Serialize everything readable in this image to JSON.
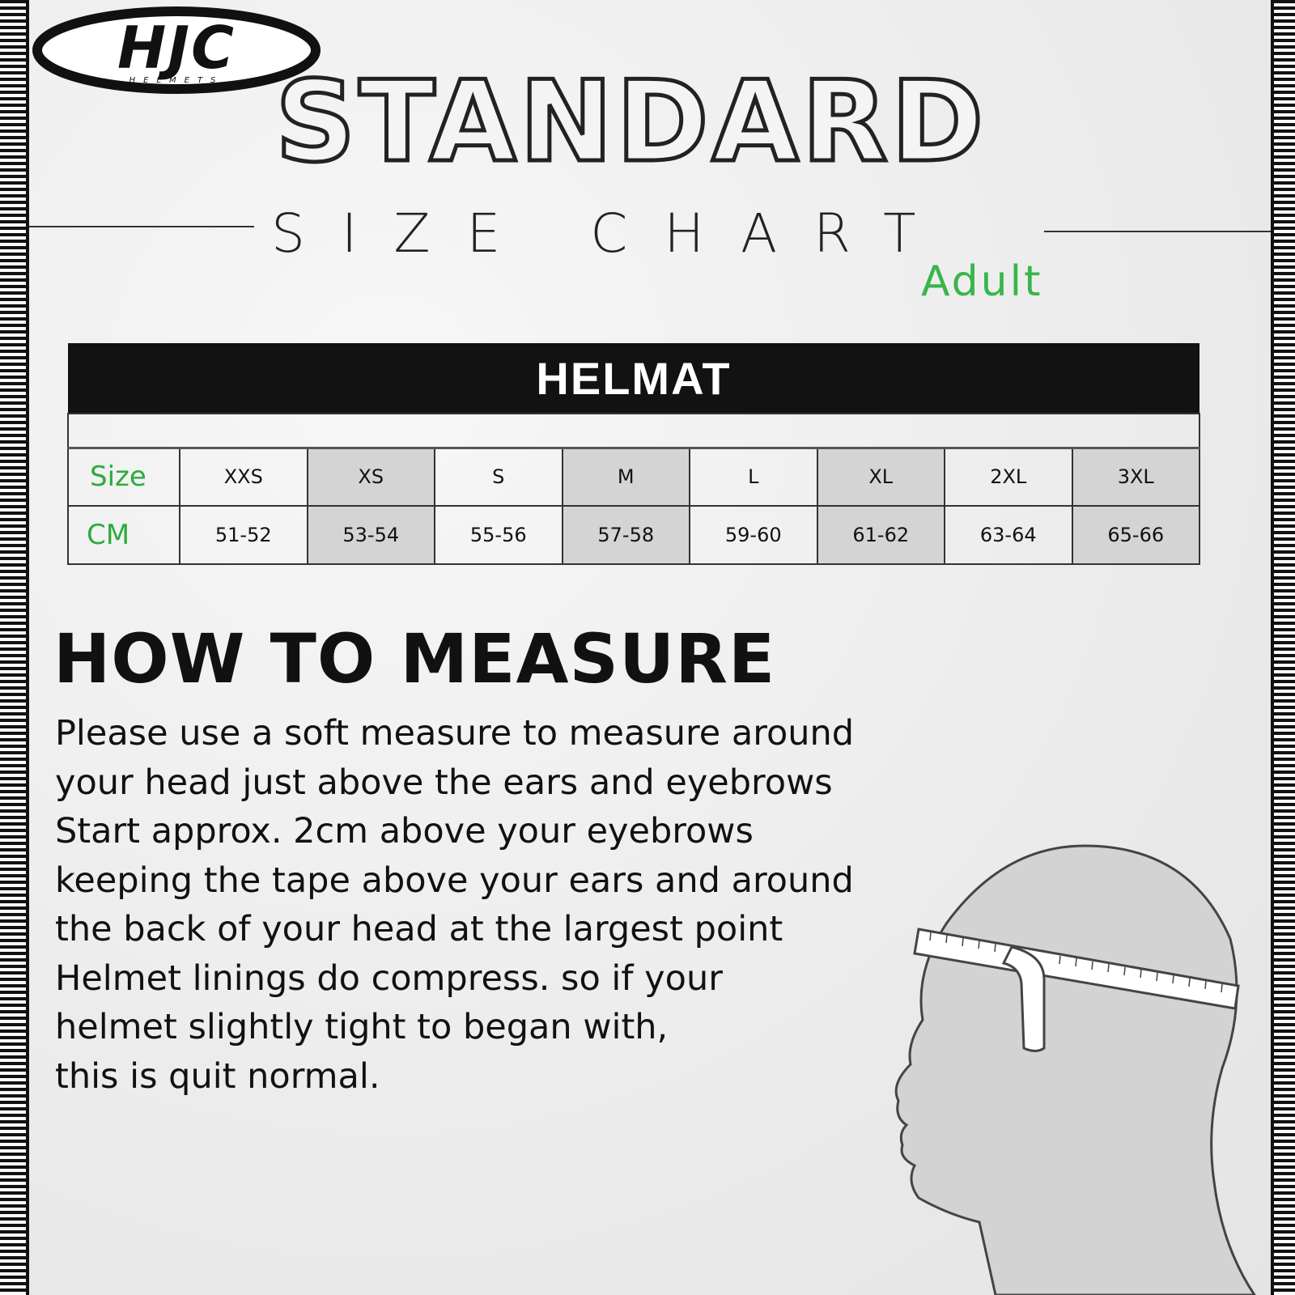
{
  "logo": {
    "brand": "HJC",
    "tagline": "HELMETS"
  },
  "title": "STANDARD",
  "subtitle": "SIZE CHART",
  "audience": "Adult",
  "table": {
    "title": "HELMAT",
    "size_label": "Size",
    "cm_label": "CM",
    "sizes": [
      "XXS",
      "XS",
      "S",
      "M",
      "L",
      "XL",
      "2XL",
      "3XL"
    ],
    "cm": [
      "51-52",
      "53-54",
      "55-56",
      "57-58",
      "59-60",
      "61-62",
      "63-64",
      "65-66"
    ]
  },
  "how": {
    "heading": "HOW TO MEASURE",
    "lines": [
      "Please use a soft measure to measure around",
      "your head just above the ears and eyebrows",
      "Start approx. 2cm above your eyebrows",
      "keeping the tape above your ears and around",
      "the back of your head at the largest point",
      "Helmet linings do compress. so if your",
      "helmet slightly tight to began with,",
      "this is quit normal."
    ]
  },
  "colors": {
    "accent": "#39b54a",
    "header": "#121212",
    "shade": "#d4d4d4"
  }
}
